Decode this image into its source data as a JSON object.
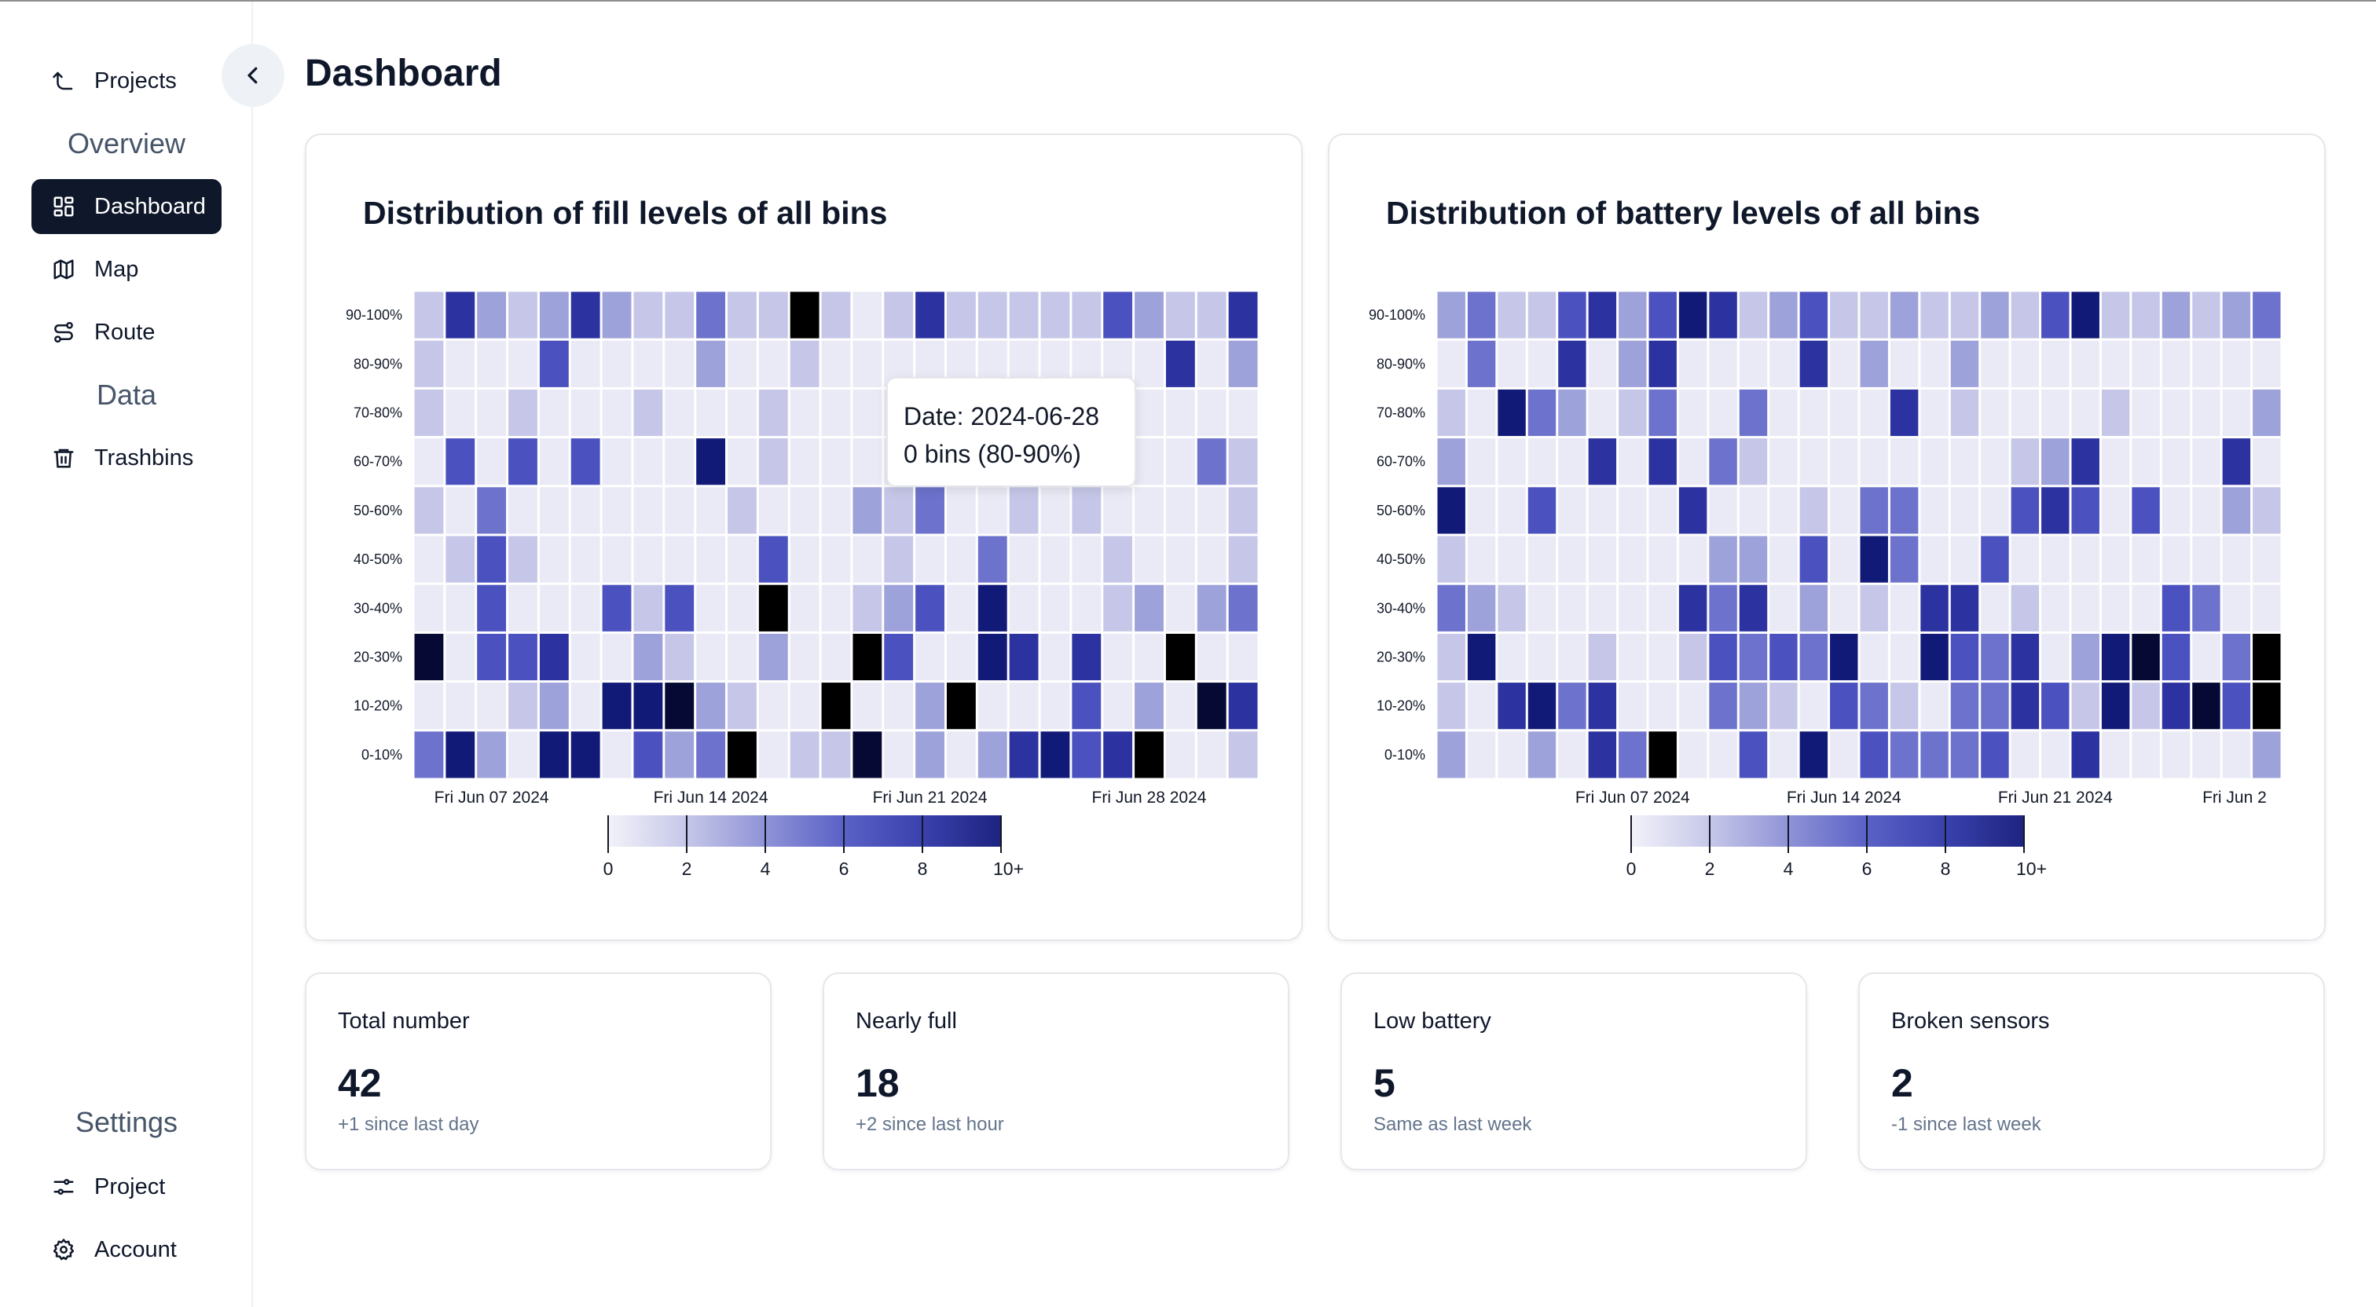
{
  "sidebar": {
    "back_label": "Projects",
    "overview_heading": "Overview",
    "items": [
      {
        "label": "Dashboard",
        "icon": "dashboard-icon",
        "active": true
      },
      {
        "label": "Map",
        "icon": "map-icon"
      },
      {
        "label": "Route",
        "icon": "route-icon"
      }
    ],
    "data_heading": "Data",
    "data_items": [
      {
        "label": "Trashbins",
        "icon": "trash-icon"
      }
    ],
    "settings_heading": "Settings",
    "settings_items": [
      {
        "label": "Project",
        "icon": "sliders-icon"
      },
      {
        "label": "Account",
        "icon": "gear-icon"
      }
    ]
  },
  "header": {
    "title": "Dashboard"
  },
  "charts": {
    "fill": {
      "title": "Distribution of fill levels of all bins"
    },
    "battery": {
      "title": "Distribution of battery levels of all bins"
    }
  },
  "tooltip": {
    "line1": "Date: 2024-06-28",
    "line2": "0 bins (80-90%)"
  },
  "stats": [
    {
      "label": "Total number",
      "value": "42",
      "note": "+1 since last day"
    },
    {
      "label": "Nearly full",
      "value": "18",
      "note": "+2 since last hour"
    },
    {
      "label": "Low battery",
      "value": "5",
      "note": "Same as last week"
    },
    {
      "label": "Broken sensors",
      "value": "2",
      "note": "-1 since last week"
    }
  ],
  "colors": {
    "scale": [
      "#eaeaf6",
      "#c6c7e8",
      "#9ea2da",
      "#6d73cc",
      "#4b52bf",
      "#2c33a0",
      "#121a78",
      "#050934",
      "#000000"
    ],
    "sidebar_active": "#0f172a"
  },
  "chart_data": [
    {
      "type": "heatmap",
      "title": "Distribution of fill levels of all bins",
      "y_categories": [
        "0-10%",
        "10-20%",
        "20-30%",
        "30-40%",
        "40-50%",
        "50-60%",
        "60-70%",
        "70-80%",
        "80-90%",
        "90-100%"
      ],
      "x_tick_labels": [
        "Fri Jun 07 2024",
        "Fri Jun 14 2024",
        "Fri Jun 21 2024",
        "Fri Jun 28 2024"
      ],
      "x_ticks_at_column": [
        2,
        9,
        16,
        23
      ],
      "legend": {
        "ticks": [
          "0",
          "2",
          "4",
          "6",
          "8",
          "10+"
        ],
        "min": 0,
        "max": 10
      },
      "columns": 27,
      "rows": [
        [
          3,
          6,
          2,
          0,
          6,
          6,
          0,
          4,
          2,
          3,
          9,
          0,
          1,
          1,
          7,
          0,
          2,
          0,
          2,
          5,
          6,
          4,
          5,
          8,
          0,
          0,
          1
        ],
        [
          0,
          0,
          0,
          1,
          2,
          0,
          6,
          6,
          7,
          2,
          1,
          0,
          0,
          9,
          0,
          0,
          2,
          9,
          0,
          0,
          0,
          4,
          0,
          2,
          0,
          7,
          5
        ],
        [
          7,
          0,
          4,
          4,
          5,
          0,
          0,
          2,
          1,
          0,
          0,
          2,
          0,
          0,
          9,
          4,
          0,
          0,
          6,
          5,
          0,
          5,
          0,
          0,
          9,
          0,
          0
        ],
        [
          0,
          0,
          4,
          0,
          0,
          0,
          4,
          1,
          4,
          0,
          0,
          8,
          0,
          0,
          1,
          2,
          4,
          0,
          6,
          0,
          0,
          0,
          1,
          2,
          0,
          2,
          3
        ],
        [
          0,
          1,
          4,
          1,
          0,
          0,
          0,
          0,
          0,
          0,
          0,
          4,
          0,
          0,
          0,
          1,
          0,
          0,
          3,
          0,
          0,
          0,
          1,
          0,
          0,
          0,
          1
        ],
        [
          1,
          0,
          3,
          0,
          0,
          0,
          0,
          0,
          0,
          0,
          1,
          0,
          0,
          0,
          2,
          1,
          3,
          0,
          0,
          1,
          0,
          1,
          0,
          0,
          0,
          0,
          1
        ],
        [
          0,
          4,
          0,
          4,
          0,
          4,
          0,
          0,
          0,
          6,
          0,
          1,
          0,
          0,
          0,
          0,
          0,
          0,
          0,
          0,
          0,
          0,
          0,
          0,
          0,
          3,
          1
        ],
        [
          1,
          0,
          0,
          1,
          0,
          0,
          0,
          1,
          0,
          0,
          0,
          1,
          0,
          0,
          0,
          0,
          0,
          0,
          0,
          0,
          0,
          0,
          0,
          0,
          0,
          0,
          0
        ],
        [
          1,
          0,
          0,
          0,
          4,
          0,
          0,
          0,
          0,
          2,
          0,
          0,
          1,
          0,
          0,
          0,
          0,
          0,
          0,
          0,
          0,
          0,
          0,
          0,
          5,
          0,
          2
        ],
        [
          1,
          5,
          2,
          1,
          2,
          5,
          2,
          1,
          1,
          3,
          1,
          1,
          9,
          1,
          0,
          1,
          5,
          1,
          1,
          1,
          1,
          1,
          4,
          2,
          1,
          1,
          5
        ]
      ]
    },
    {
      "type": "heatmap",
      "title": "Distribution of battery levels of all bins",
      "y_categories": [
        "0-10%",
        "10-20%",
        "20-30%",
        "30-40%",
        "40-50%",
        "50-60%",
        "60-70%",
        "70-80%",
        "80-90%",
        "90-100%"
      ],
      "x_tick_labels": [
        "Fri Jun 07 2024",
        "Fri Jun 14 2024",
        "Fri Jun 21 2024",
        "Fri Jun 2"
      ],
      "x_ticks_at_column": [
        6,
        13,
        20,
        27
      ],
      "legend": {
        "ticks": [
          "0",
          "2",
          "4",
          "6",
          "8",
          "10+"
        ],
        "min": 0,
        "max": 10
      },
      "columns": 28,
      "rows": [
        [
          2,
          0,
          0,
          2,
          0,
          5,
          3,
          8,
          0,
          0,
          4,
          0,
          6,
          0,
          4,
          3,
          3,
          3,
          4,
          0,
          0,
          5,
          0,
          0,
          0,
          0,
          0,
          2
        ],
        [
          1,
          0,
          5,
          6,
          3,
          5,
          0,
          0,
          0,
          3,
          2,
          1,
          0,
          4,
          3,
          1,
          0,
          3,
          3,
          5,
          4,
          1,
          6,
          1,
          5,
          7,
          4,
          8
        ],
        [
          1,
          6,
          0,
          0,
          0,
          1,
          0,
          0,
          1,
          4,
          3,
          4,
          3,
          6,
          0,
          0,
          6,
          4,
          3,
          5,
          0,
          2,
          6,
          7,
          4,
          0,
          3,
          8
        ],
        [
          3,
          2,
          1,
          0,
          0,
          0,
          0,
          0,
          5,
          3,
          5,
          0,
          2,
          0,
          1,
          0,
          5,
          5,
          0,
          1,
          0,
          0,
          0,
          0,
          4,
          3,
          0,
          0
        ],
        [
          1,
          0,
          0,
          0,
          0,
          0,
          0,
          0,
          0,
          2,
          2,
          0,
          4,
          0,
          6,
          3,
          0,
          0,
          4,
          0,
          0,
          0,
          0,
          0,
          0,
          0,
          0,
          0
        ],
        [
          6,
          0,
          0,
          4,
          0,
          0,
          0,
          0,
          5,
          0,
          0,
          0,
          1,
          0,
          3,
          3,
          0,
          0,
          0,
          4,
          5,
          4,
          0,
          4,
          0,
          0,
          2,
          1
        ],
        [
          2,
          0,
          0,
          0,
          0,
          5,
          0,
          5,
          0,
          3,
          1,
          0,
          0,
          0,
          0,
          0,
          0,
          0,
          0,
          1,
          2,
          5,
          0,
          0,
          0,
          0,
          5,
          0
        ],
        [
          1,
          0,
          6,
          3,
          2,
          0,
          1,
          3,
          0,
          0,
          3,
          0,
          0,
          0,
          0,
          5,
          0,
          1,
          0,
          0,
          0,
          0,
          1,
          0,
          0,
          0,
          0,
          2
        ],
        [
          0,
          3,
          0,
          0,
          5,
          0,
          2,
          5,
          0,
          0,
          0,
          0,
          5,
          0,
          2,
          0,
          0,
          2,
          0,
          0,
          0,
          0,
          0,
          0,
          0,
          0,
          0,
          0
        ],
        [
          2,
          3,
          1,
          1,
          4,
          5,
          2,
          4,
          6,
          5,
          1,
          2,
          4,
          1,
          1,
          2,
          1,
          1,
          2,
          1,
          4,
          6,
          1,
          1,
          2,
          1,
          2,
          3
        ]
      ]
    }
  ]
}
